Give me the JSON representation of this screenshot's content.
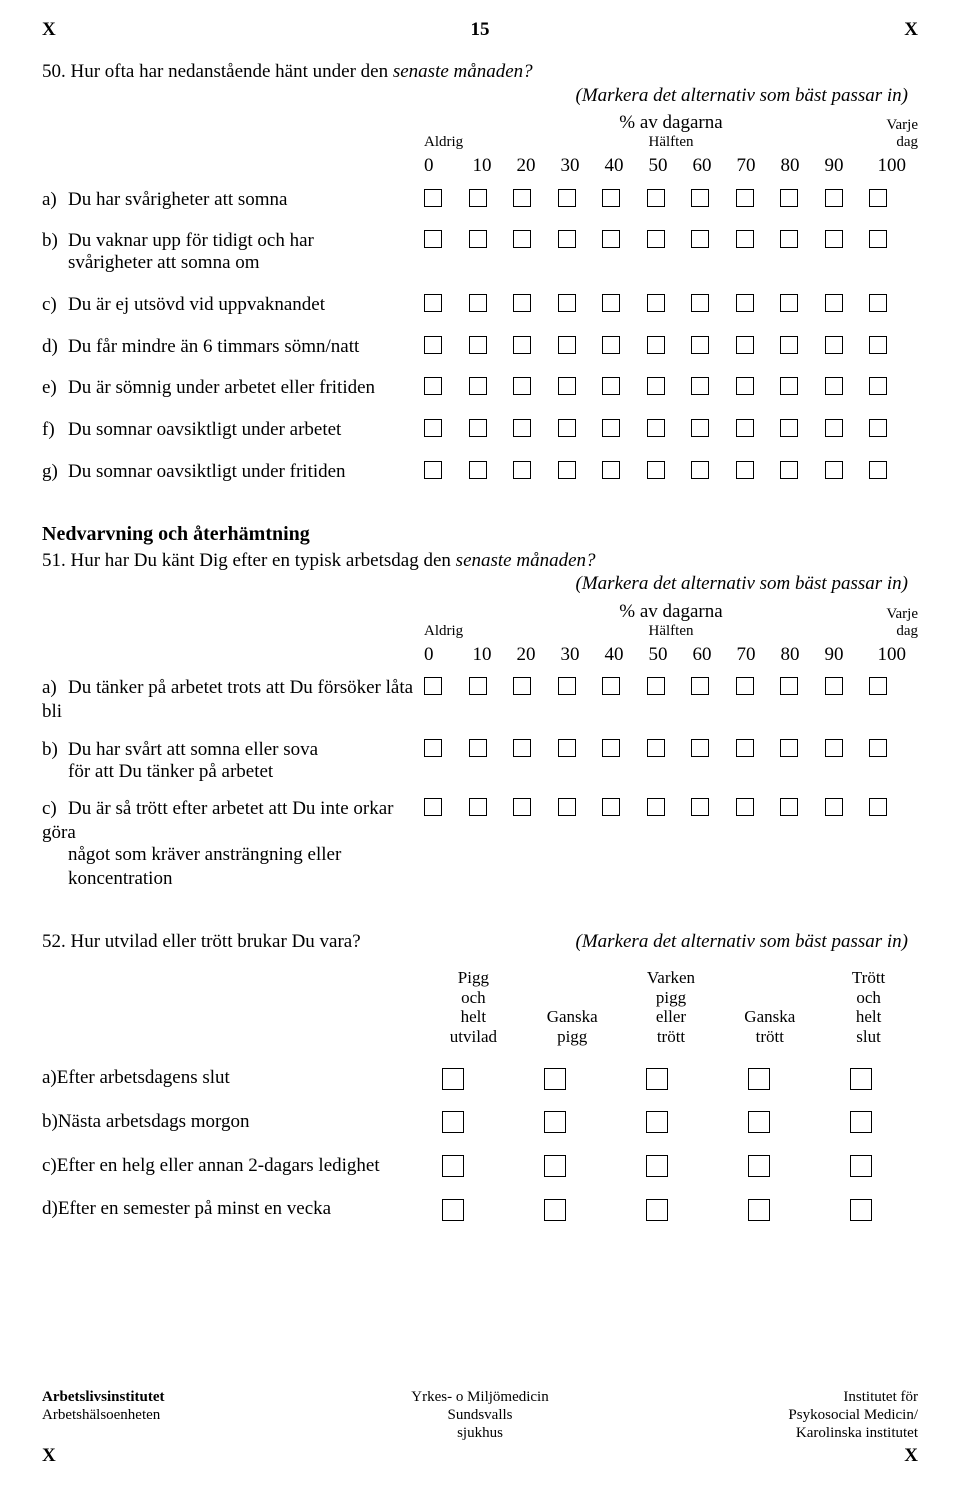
{
  "page": {
    "top_x_left": "X",
    "top_num": "15",
    "top_x_right": "X"
  },
  "q50": {
    "text": "50. Hur ofta har nedanstående hänt under den ",
    "text_italic": "senaste månaden?",
    "hint": "(Markera det alternativ som bäst passar in)",
    "pct_line": "%  av dagarna",
    "aldrig": "Aldrig",
    "halften": "Hälften",
    "varje": "Varje",
    "dag": "dag",
    "ticks": [
      "0",
      "10",
      "20",
      "30",
      "40",
      "50",
      "60",
      "70",
      "80",
      "90",
      "100"
    ],
    "items": [
      {
        "key": "a",
        "letter": "a)",
        "text": "Du har svårigheter att somna"
      },
      {
        "key": "b",
        "letter": "b)",
        "text": "Du vaknar upp för tidigt och har",
        "cont": "svårigheter att somna om"
      },
      {
        "key": "c",
        "letter": "c)",
        "text": "Du är ej utsövd vid uppvaknandet"
      },
      {
        "key": "d",
        "letter": "d)",
        "text": "Du får mindre än 6 timmars sömn/natt"
      },
      {
        "key": "e",
        "letter": "e)",
        "text": "Du är sömnig under arbetet eller fritiden"
      },
      {
        "key": "f",
        "letter": "f)",
        "text": "Du somnar oavsiktligt under arbetet"
      },
      {
        "key": "g",
        "letter": "g)",
        "text": "Du somnar oavsiktligt under fritiden"
      }
    ]
  },
  "section51_title": "Nedvarvning och återhämtning",
  "q51": {
    "text": "51. Hur har Du känt Dig efter en typisk arbetsdag den ",
    "text_italic": "senaste månaden?",
    "hint": "(Markera det alternativ som bäst passar in)",
    "pct_line": "%  av dagarna",
    "aldrig": "Aldrig",
    "halften": "Hälften",
    "varje": "Varje",
    "dag": "dag",
    "ticks": [
      "0",
      "10",
      "20",
      "30",
      "40",
      "50",
      "60",
      "70",
      "80",
      "90",
      "100"
    ],
    "items": [
      {
        "key": "a",
        "letter": "a)",
        "text": "Du tänker på arbetet trots att Du försöker låta bli"
      },
      {
        "key": "b",
        "letter": "b)",
        "text": "Du har svårt att somna eller sova",
        "cont": "för att Du tänker på arbetet"
      },
      {
        "key": "c",
        "letter": "c)",
        "text": "Du är så trött efter arbetet att Du inte orkar göra",
        "cont": "något som kräver ansträngning eller koncentration"
      }
    ]
  },
  "q52": {
    "text": "52. Hur utvilad eller trött brukar Du vara?",
    "hint": "(Markera det alternativ som bäst passar in)",
    "cols": [
      [
        "Pigg",
        "och",
        "helt",
        "utvilad"
      ],
      [
        "",
        "",
        "Ganska",
        "pigg"
      ],
      [
        "Varken",
        "pigg",
        "eller",
        "trött"
      ],
      [
        "",
        "",
        "Ganska",
        "trött"
      ],
      [
        "Trött",
        "och",
        "helt",
        "slut"
      ]
    ],
    "items": [
      {
        "key": "a",
        "letter": "a)",
        "text": "Efter arbetsdagens slut"
      },
      {
        "key": "b",
        "letter": "b)",
        "text": "Nästa arbetsdags morgon"
      },
      {
        "key": "c",
        "letter": "c)",
        "text": "Efter en helg eller annan 2-dagars ledighet"
      },
      {
        "key": "d",
        "letter": "d)",
        "text": "Efter en semester på minst en vecka"
      }
    ]
  },
  "footer": {
    "left1": "Arbetslivsinstitutet",
    "left2": "Arbetshälsoenheten",
    "mid1": "Yrkes- o Miljömedicin",
    "mid2": "Sundsvalls",
    "mid3": "sjukhus",
    "right1": "Institutet för",
    "right2": "Psykosocial Medicin/",
    "right3": "Karolinska institutet",
    "xl": "X",
    "xr": "X"
  }
}
